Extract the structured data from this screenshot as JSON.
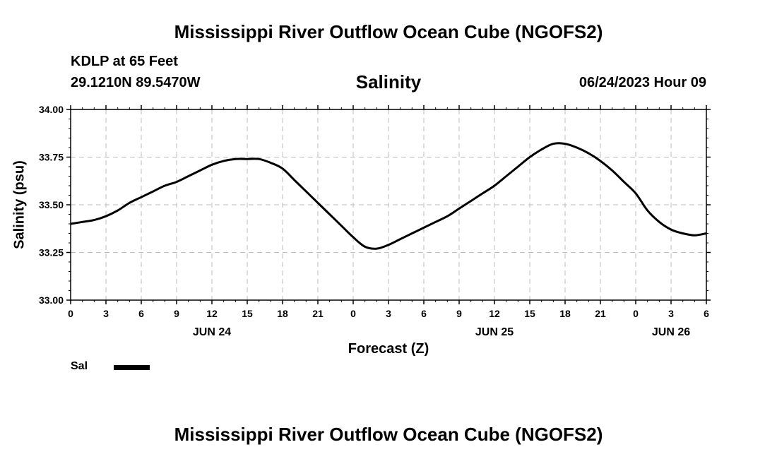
{
  "header": {
    "title": "Mississippi River Outflow Ocean Cube (NGOFS2)",
    "station": "KDLP at 65 Feet",
    "coords": "29.1210N  89.5470W",
    "subtitle": "Salinity",
    "datetime": "06/24/2023 Hour 09"
  },
  "footer": {
    "title": "Mississippi River Outflow Ocean Cube (NGOFS2)"
  },
  "legend": {
    "label": "Sal",
    "color": "#000000"
  },
  "chart_data": {
    "type": "line",
    "title": "Salinity",
    "xlabel": "Forecast (Z)",
    "ylabel": "Salinity (psu)",
    "xlim": [
      0,
      54
    ],
    "ylim": [
      33.0,
      34.0
    ],
    "y_ticks": [
      "33.00",
      "33.25",
      "33.50",
      "33.75",
      "34.00"
    ],
    "x_ticks": [
      "0",
      "3",
      "6",
      "9",
      "12",
      "15",
      "18",
      "21",
      "0",
      "3",
      "6",
      "9",
      "12",
      "15",
      "18",
      "21",
      "0",
      "3",
      "6"
    ],
    "day_labels": [
      "JUN 24",
      "JUN 25",
      "JUN 26"
    ],
    "grid": true,
    "legend_position": "bottom-left",
    "series": [
      {
        "name": "Sal",
        "color": "#000000",
        "x": [
          0,
          1,
          2,
          3,
          4,
          5,
          6,
          7,
          8,
          9,
          10,
          11,
          12,
          13,
          14,
          15,
          16,
          17,
          18,
          19,
          20,
          21,
          22,
          23,
          24,
          25,
          26,
          27,
          28,
          29,
          30,
          31,
          32,
          33,
          34,
          35,
          36,
          37,
          38,
          39,
          40,
          41,
          42,
          43,
          44,
          45,
          46,
          47,
          48,
          49,
          50,
          51,
          52,
          53,
          54
        ],
        "y": [
          33.4,
          33.41,
          33.42,
          33.44,
          33.47,
          33.51,
          33.54,
          33.57,
          33.6,
          33.62,
          33.65,
          33.68,
          33.71,
          33.73,
          33.74,
          33.74,
          33.74,
          33.72,
          33.69,
          33.63,
          33.57,
          33.51,
          33.45,
          33.39,
          33.33,
          33.28,
          33.27,
          33.29,
          33.32,
          33.35,
          33.38,
          33.41,
          33.44,
          33.48,
          33.52,
          33.56,
          33.6,
          33.65,
          33.7,
          33.75,
          33.79,
          33.82,
          33.82,
          33.8,
          33.77,
          33.73,
          33.68,
          33.62,
          33.56,
          33.47,
          33.41,
          33.37,
          33.35,
          33.34,
          33.35
        ]
      }
    ]
  }
}
